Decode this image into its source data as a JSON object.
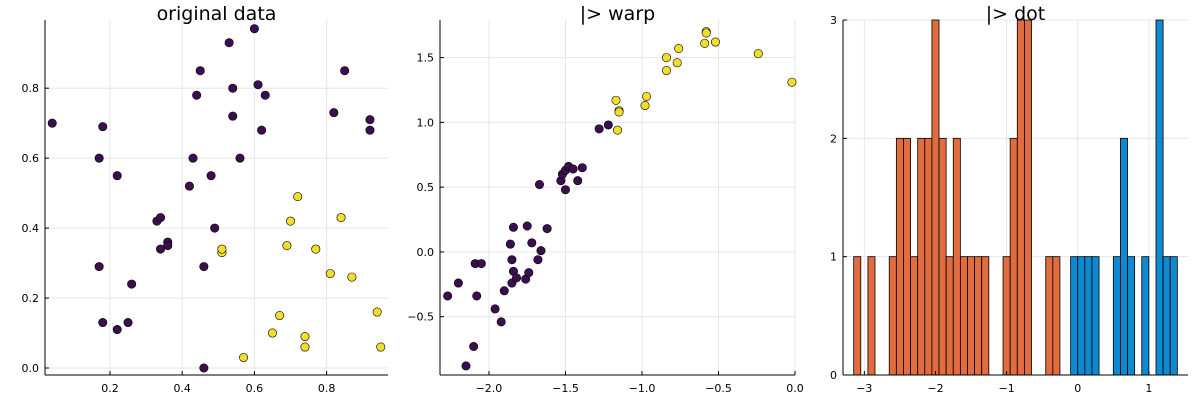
{
  "colors": {
    "class0": "#3b0f4f",
    "class1": "#f2dd2c",
    "bar_orange": "#e06c3f",
    "bar_blue": "#0f8ad1"
  },
  "chart_data": [
    {
      "type": "scatter",
      "title": "original data",
      "xlim": [
        0.02,
        0.97
      ],
      "ylim": [
        -0.02,
        0.995
      ],
      "xticks": [
        0.2,
        0.4,
        0.6,
        0.8
      ],
      "xtick_labels": [
        "0.2",
        "0.4",
        "0.6",
        "0.8"
      ],
      "yticks": [
        0.0,
        0.2,
        0.4,
        0.6,
        0.8
      ],
      "ytick_labels": [
        "0.0",
        "0.2",
        "0.4",
        "0.6",
        "0.8"
      ],
      "grid": true,
      "series": [
        {
          "color": "#3b0f4f",
          "points": [
            [
              0.04,
              0.7
            ],
            [
              0.18,
              0.69
            ],
            [
              0.17,
              0.6
            ],
            [
              0.22,
              0.55
            ],
            [
              0.17,
              0.29
            ],
            [
              0.18,
              0.13
            ],
            [
              0.22,
              0.11
            ],
            [
              0.25,
              0.13
            ],
            [
              0.26,
              0.24
            ],
            [
              0.33,
              0.42
            ],
            [
              0.34,
              0.43
            ],
            [
              0.34,
              0.34
            ],
            [
              0.36,
              0.36
            ],
            [
              0.36,
              0.35
            ],
            [
              0.42,
              0.52
            ],
            [
              0.43,
              0.6
            ],
            [
              0.44,
              0.78
            ],
            [
              0.45,
              0.85
            ],
            [
              0.46,
              0.29
            ],
            [
              0.46,
              0.0
            ],
            [
              0.48,
              0.55
            ],
            [
              0.49,
              0.4
            ],
            [
              0.53,
              0.93
            ],
            [
              0.54,
              0.8
            ],
            [
              0.54,
              0.72
            ],
            [
              0.56,
              0.6
            ],
            [
              0.6,
              0.97
            ],
            [
              0.61,
              0.81
            ],
            [
              0.62,
              0.68
            ],
            [
              0.63,
              0.78
            ],
            [
              0.82,
              0.73
            ],
            [
              0.85,
              0.85
            ],
            [
              0.92,
              0.71
            ],
            [
              0.92,
              0.68
            ]
          ]
        },
        {
          "color": "#f2dd2c",
          "points": [
            [
              0.51,
              0.33
            ],
            [
              0.51,
              0.34
            ],
            [
              0.57,
              0.03
            ],
            [
              0.65,
              0.1
            ],
            [
              0.67,
              0.15
            ],
            [
              0.69,
              0.35
            ],
            [
              0.7,
              0.42
            ],
            [
              0.72,
              0.49
            ],
            [
              0.74,
              0.09
            ],
            [
              0.74,
              0.06
            ],
            [
              0.77,
              0.34
            ],
            [
              0.81,
              0.27
            ],
            [
              0.84,
              0.43
            ],
            [
              0.87,
              0.26
            ],
            [
              0.94,
              0.16
            ],
            [
              0.95,
              0.06
            ]
          ]
        }
      ]
    },
    {
      "type": "scatter",
      "title": "|> warp",
      "xlim": [
        -2.32,
        0.0
      ],
      "ylim": [
        -0.95,
        1.79
      ],
      "xticks": [
        -2.0,
        -1.5,
        -1.0,
        -0.5,
        0.0
      ],
      "xtick_labels": [
        "−2.0",
        "−1.5",
        "−1.0",
        "−0.5",
        "0.0"
      ],
      "yticks": [
        -0.5,
        0.0,
        0.5,
        1.0,
        1.5
      ],
      "ytick_labels": [
        "−0.5",
        "0.0",
        "0.5",
        "1.0",
        "1.5"
      ],
      "grid": true,
      "series": [
        {
          "color": "#3b0f4f",
          "points": [
            [
              -2.27,
              -0.34
            ],
            [
              -2.2,
              -0.24
            ],
            [
              -2.15,
              -0.88
            ],
            [
              -2.1,
              -0.73
            ],
            [
              -2.09,
              -0.09
            ],
            [
              -2.08,
              -0.34
            ],
            [
              -2.05,
              -0.09
            ],
            [
              -1.96,
              -0.44
            ],
            [
              -1.92,
              -0.54
            ],
            [
              -1.9,
              -0.3
            ],
            [
              -1.86,
              0.06
            ],
            [
              -1.85,
              -0.06
            ],
            [
              -1.85,
              -0.24
            ],
            [
              -1.84,
              -0.15
            ],
            [
              -1.84,
              0.19
            ],
            [
              -1.82,
              -0.2
            ],
            [
              -1.76,
              -0.21
            ],
            [
              -1.75,
              0.2
            ],
            [
              -1.74,
              -0.16
            ],
            [
              -1.72,
              0.07
            ],
            [
              -1.68,
              -0.06
            ],
            [
              -1.66,
              0.01
            ],
            [
              -1.67,
              0.52
            ],
            [
              -1.62,
              0.18
            ],
            [
              -1.53,
              0.55
            ],
            [
              -1.52,
              0.6
            ],
            [
              -1.5,
              0.48
            ],
            [
              -1.5,
              0.63
            ],
            [
              -1.48,
              0.66
            ],
            [
              -1.45,
              0.64
            ],
            [
              -1.42,
              0.55
            ],
            [
              -1.39,
              0.65
            ],
            [
              -1.28,
              0.95
            ],
            [
              -1.22,
              0.98
            ]
          ]
        },
        {
          "color": "#f2dd2c",
          "points": [
            [
              -1.17,
              1.17
            ],
            [
              -1.15,
              1.09
            ],
            [
              -1.16,
              0.94
            ],
            [
              -0.98,
              1.13
            ],
            [
              -0.97,
              1.2
            ],
            [
              -0.84,
              1.4
            ],
            [
              -0.84,
              1.5
            ],
            [
              -0.77,
              1.46
            ],
            [
              -0.76,
              1.57
            ],
            [
              -0.59,
              1.61
            ],
            [
              -0.58,
              1.7
            ],
            [
              -0.52,
              1.62
            ],
            [
              -0.24,
              1.53
            ],
            [
              -0.02,
              1.31
            ],
            [
              -0.58,
              1.69
            ],
            [
              -1.15,
              1.08
            ]
          ]
        }
      ]
    },
    {
      "type": "bar",
      "title": "|> dot",
      "xlim": [
        -3.3,
        1.55
      ],
      "ylim": [
        0,
        3
      ],
      "bin_width": 0.1,
      "xticks": [
        -3,
        -2,
        -1,
        0,
        1
      ],
      "xtick_labels": [
        "−3",
        "−2",
        "−1",
        "0",
        "1"
      ],
      "yticks": [
        0,
        1,
        2,
        3
      ],
      "ytick_labels": [
        "0",
        "1",
        "2",
        "3"
      ],
      "grid": true,
      "series": [
        {
          "color": "#e06c3f",
          "bins": [
            [
              -3.1,
              1
            ],
            [
              -2.9,
              1
            ],
            [
              -2.6,
              1
            ],
            [
              -2.5,
              2
            ],
            [
              -2.4,
              2
            ],
            [
              -2.3,
              1
            ],
            [
              -2.2,
              2
            ],
            [
              -2.1,
              2
            ],
            [
              -2.0,
              3
            ],
            [
              -1.9,
              2
            ],
            [
              -1.8,
              1
            ],
            [
              -1.7,
              2
            ],
            [
              -1.6,
              1
            ],
            [
              -1.5,
              1
            ],
            [
              -1.4,
              1
            ],
            [
              -1.3,
              1
            ],
            [
              -1.0,
              1
            ],
            [
              -0.9,
              2
            ],
            [
              -0.8,
              3
            ],
            [
              -0.7,
              3
            ],
            [
              -0.4,
              1
            ],
            [
              -0.3,
              1
            ]
          ]
        },
        {
          "color": "#0f8ad1",
          "bins": [
            [
              -0.05,
              1
            ],
            [
              0.05,
              1
            ],
            [
              0.15,
              1
            ],
            [
              0.25,
              1
            ],
            [
              0.55,
              1
            ],
            [
              0.65,
              2
            ],
            [
              0.75,
              1
            ],
            [
              0.95,
              1
            ],
            [
              1.15,
              3
            ],
            [
              1.25,
              1
            ],
            [
              1.35,
              1
            ]
          ]
        }
      ]
    }
  ]
}
